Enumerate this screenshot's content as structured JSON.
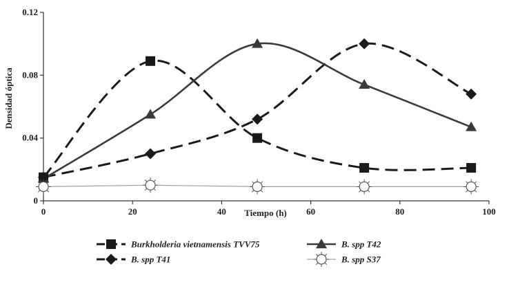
{
  "chart_data": {
    "type": "line",
    "title": "",
    "xlabel": "Tiempo (h)",
    "ylabel": "Densidad óptica",
    "xlim": [
      0,
      100
    ],
    "ylim": [
      0,
      0.12
    ],
    "xticks": [
      0,
      20,
      40,
      60,
      80,
      100
    ],
    "yticks": [
      0,
      0.04,
      0.08,
      0.12
    ],
    "xtick_labels": [
      "0",
      "20",
      "40",
      "60",
      "80",
      "100"
    ],
    "ytick_labels": [
      "0",
      "0.04",
      "0.08",
      "0.12"
    ],
    "grid": false,
    "legend_position": "bottom",
    "series": [
      {
        "name": "Burkholderia vietnamensis TVV75",
        "marker": "square",
        "line_style": "dashed",
        "color": "#1a1a1a",
        "x": [
          0,
          24,
          48,
          72,
          96
        ],
        "y": [
          0.015,
          0.089,
          0.04,
          0.021,
          0.021
        ]
      },
      {
        "name": "B. spp T42",
        "marker": "triangle",
        "line_style": "solid",
        "color": "#3a3a3a",
        "x": [
          0,
          24,
          48,
          72,
          96
        ],
        "y": [
          0.014,
          0.055,
          0.1,
          0.074,
          0.047
        ]
      },
      {
        "name": "B. spp T41",
        "marker": "diamond",
        "line_style": "dashed",
        "color": "#1a1a1a",
        "x": [
          0,
          24,
          48,
          72,
          96
        ],
        "y": [
          0.015,
          0.03,
          0.052,
          0.1,
          0.068
        ]
      },
      {
        "name": "B. spp S37",
        "marker": "asterisk-circle",
        "line_style": "solid-thin",
        "color": "#a0a0a0",
        "x": [
          0,
          24,
          48,
          72,
          96
        ],
        "y": [
          0.009,
          0.01,
          0.009,
          0.009,
          0.009
        ]
      }
    ]
  }
}
